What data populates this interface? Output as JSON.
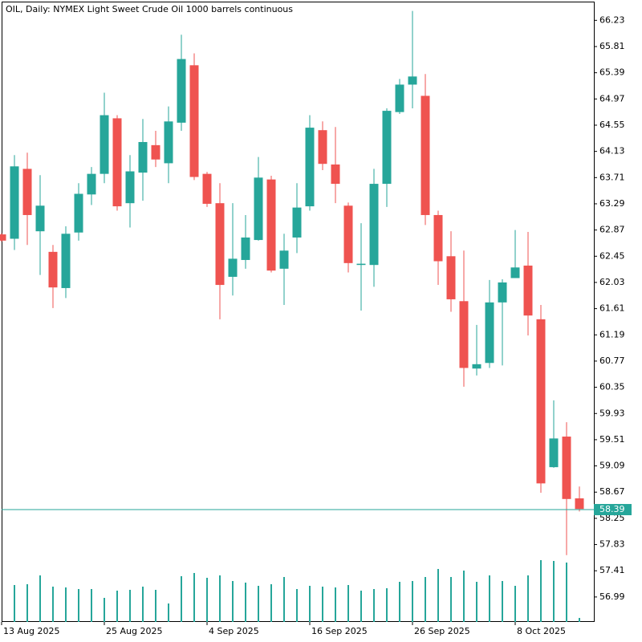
{
  "chart_data": {
    "type": "candlestick",
    "title": "OIL, Daily:  NYMEX Light Sweet Crude Oil 1000 barrels continuous",
    "categories": [
      "13 Aug 2025",
      null,
      null,
      null,
      null,
      null,
      null,
      null,
      "25 Aug 2025",
      null,
      null,
      null,
      null,
      null,
      null,
      null,
      "4 Sep 2025",
      null,
      null,
      null,
      null,
      null,
      null,
      null,
      "16 Sep 2025",
      null,
      null,
      null,
      null,
      null,
      null,
      null,
      "26 Sep 2025",
      null,
      null,
      null,
      null,
      null,
      null,
      null,
      "8 Oct 2025",
      null,
      null,
      null,
      null,
      null
    ],
    "open": [
      62.8,
      62.73,
      63.85,
      62.85,
      62.52,
      61.94,
      62.83,
      63.44,
      63.77,
      64.66,
      63.3,
      63.79,
      64.23,
      63.94,
      64.59,
      65.51,
      63.77,
      63.3,
      62.12,
      62.39,
      62.71,
      63.68,
      62.25,
      62.75,
      63.25,
      64.47,
      63.92,
      63.26,
      62.31,
      62.31,
      63.61,
      64.76,
      65.2,
      65.02,
      63.11,
      62.45,
      61.73,
      60.65,
      60.74,
      61.71,
      62.1,
      62.3,
      61.44,
      59.07,
      59.56,
      58.57
    ],
    "high": [
      62.82,
      64.07,
      64.11,
      63.75,
      62.63,
      62.93,
      63.62,
      63.88,
      65.07,
      64.71,
      64.07,
      64.65,
      64.46,
      64.85,
      66.0,
      65.7,
      63.8,
      63.62,
      63.3,
      63.11,
      64.04,
      63.74,
      62.81,
      63.62,
      64.71,
      64.61,
      64.52,
      63.31,
      62.98,
      63.85,
      64.82,
      65.29,
      66.38,
      65.37,
      63.18,
      62.85,
      62.54,
      61.35,
      62.07,
      62.08,
      62.87,
      62.84,
      61.67,
      60.14,
      59.79,
      58.76
    ],
    "low": [
      62.68,
      62.55,
      62.63,
      62.15,
      61.62,
      61.78,
      62.7,
      63.27,
      63.62,
      63.18,
      62.91,
      63.34,
      63.88,
      63.62,
      64.46,
      63.67,
      63.24,
      61.44,
      61.82,
      62.25,
      62.7,
      62.19,
      61.67,
      62.5,
      63.18,
      63.83,
      63.3,
      62.19,
      61.58,
      61.96,
      63.24,
      64.73,
      64.82,
      62.95,
      61.99,
      61.56,
      60.36,
      60.54,
      60.66,
      60.7,
      62.1,
      61.18,
      58.66,
      59.06,
      57.66,
      58.36
    ],
    "close": [
      62.7,
      63.89,
      63.11,
      63.26,
      61.95,
      62.81,
      63.45,
      63.77,
      64.71,
      63.25,
      63.81,
      64.28,
      64.0,
      64.61,
      65.61,
      63.72,
      63.29,
      61.99,
      62.41,
      62.75,
      63.71,
      62.22,
      62.54,
      63.23,
      64.51,
      63.93,
      63.61,
      62.34,
      62.33,
      63.61,
      64.78,
      65.2,
      65.33,
      63.11,
      62.37,
      61.76,
      60.66,
      60.72,
      61.71,
      62.03,
      62.27,
      61.5,
      58.81,
      59.53,
      58.56,
      58.4
    ],
    "volumes": [
      null,
      46,
      47,
      58,
      44,
      43,
      41,
      41,
      30,
      39,
      40,
      44,
      40,
      23,
      57,
      61,
      55,
      58,
      51,
      49,
      45,
      47,
      56,
      41,
      45,
      44,
      43,
      46,
      39,
      41,
      42,
      50,
      51,
      56,
      66,
      56,
      64,
      50,
      58,
      51,
      45,
      58,
      77,
      76,
      74,
      5
    ],
    "up_color": "#26a69a",
    "down_color": "#ef5350",
    "last_price": 58.39,
    "ylim": [
      56.59,
      66.53
    ],
    "yticks": [
      66.23,
      65.81,
      65.39,
      64.97,
      64.55,
      64.13,
      63.71,
      63.29,
      62.87,
      62.45,
      62.03,
      61.61,
      61.19,
      60.77,
      60.35,
      59.93,
      59.51,
      59.09,
      58.67,
      58.25,
      57.83,
      57.41,
      56.99
    ],
    "grid": false
  }
}
